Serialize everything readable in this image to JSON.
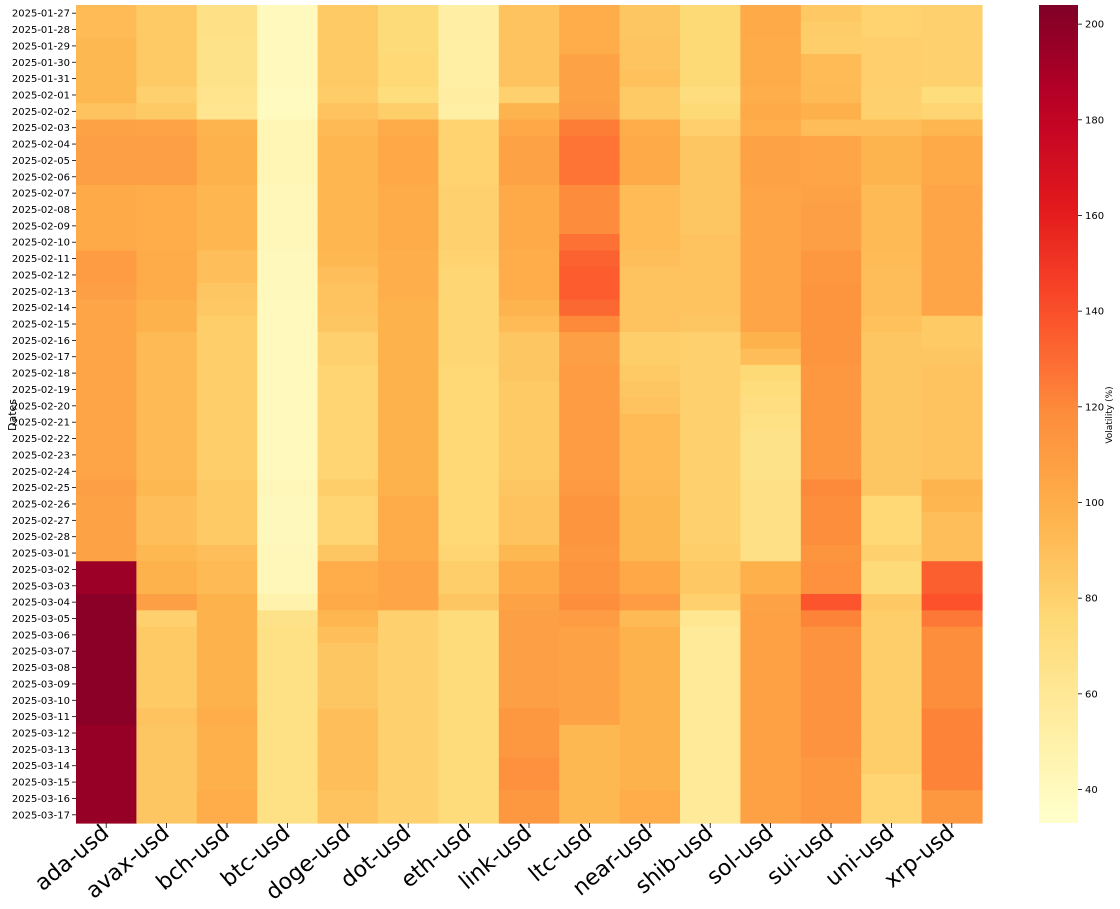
{
  "chart_data": {
    "type": "heatmap",
    "title": "",
    "ylabel": "Dates",
    "xlabel": "",
    "colorbar_label": "Volatility (%)",
    "colorbar_range": [
      33,
      204
    ],
    "colorbar_ticks": [
      40,
      60,
      80,
      100,
      120,
      140,
      160,
      180,
      200
    ],
    "colormap": "YlOrRd",
    "columns": [
      "ada-usd",
      "avax-usd",
      "bch-usd",
      "btc-usd",
      "doge-usd",
      "dot-usd",
      "eth-usd",
      "link-usd",
      "ltc-usd",
      "near-usd",
      "shib-usd",
      "sol-usd",
      "sui-usd",
      "uni-usd",
      "xrp-usd"
    ],
    "rows": [
      "2025-01-27",
      "2025-01-28",
      "2025-01-29",
      "2025-01-30",
      "2025-01-31",
      "2025-02-01",
      "2025-02-02",
      "2025-02-03",
      "2025-02-04",
      "2025-02-05",
      "2025-02-06",
      "2025-02-07",
      "2025-02-08",
      "2025-02-09",
      "2025-02-10",
      "2025-02-11",
      "2025-02-12",
      "2025-02-13",
      "2025-02-14",
      "2025-02-15",
      "2025-02-16",
      "2025-02-17",
      "2025-02-18",
      "2025-02-19",
      "2025-02-20",
      "2025-02-21",
      "2025-02-22",
      "2025-02-23",
      "2025-02-24",
      "2025-02-25",
      "2025-02-26",
      "2025-02-27",
      "2025-02-28",
      "2025-03-01",
      "2025-03-02",
      "2025-03-03",
      "2025-03-04",
      "2025-03-05",
      "2025-03-06",
      "2025-03-07",
      "2025-03-08",
      "2025-03-09",
      "2025-03-10",
      "2025-03-11",
      "2025-03-12",
      "2025-03-13",
      "2025-03-14",
      "2025-03-15",
      "2025-03-16",
      "2025-03-17"
    ],
    "values": [
      [
        92,
        84,
        67,
        40,
        84,
        74,
        53,
        88,
        100,
        86,
        75,
        102,
        85,
        79,
        80
      ],
      [
        92,
        84,
        67,
        40,
        84,
        74,
        53,
        88,
        100,
        86,
        75,
        102,
        83,
        79,
        80
      ],
      [
        94,
        84,
        66,
        40,
        84,
        74,
        52,
        88,
        100,
        87,
        75,
        101,
        82,
        81,
        80
      ],
      [
        94,
        84,
        66,
        40,
        84,
        76,
        52,
        88,
        106,
        87,
        75,
        101,
        92,
        81,
        80
      ],
      [
        94,
        84,
        66,
        40,
        84,
        76,
        52,
        88,
        106,
        89,
        75,
        101,
        92,
        81,
        80
      ],
      [
        94,
        80,
        64,
        39,
        83,
        72,
        54,
        80,
        106,
        84,
        71,
        99,
        93,
        80,
        72
      ],
      [
        88,
        84,
        63,
        39,
        88,
        82,
        52,
        96,
        108,
        84,
        75,
        102,
        98,
        80,
        78
      ],
      [
        106,
        105,
        96,
        44,
        93,
        101,
        79,
        103,
        124,
        100,
        81,
        100,
        91,
        91,
        95
      ],
      [
        108,
        108,
        97,
        44,
        95,
        103,
        79,
        106,
        127,
        102,
        86,
        106,
        104,
        96,
        102
      ],
      [
        108,
        108,
        97,
        44,
        95,
        103,
        79,
        106,
        127,
        102,
        86,
        106,
        104,
        96,
        102
      ],
      [
        108,
        108,
        97,
        44,
        95,
        103,
        79,
        106,
        127,
        102,
        86,
        106,
        104,
        96,
        102
      ],
      [
        102,
        100,
        95,
        42,
        95,
        101,
        80,
        102,
        119,
        92,
        86,
        104,
        106,
        93,
        104
      ],
      [
        102,
        100,
        95,
        42,
        95,
        101,
        80,
        102,
        119,
        92,
        86,
        104,
        108,
        93,
        104
      ],
      [
        102,
        100,
        95,
        42,
        95,
        101,
        80,
        102,
        119,
        92,
        86,
        104,
        108,
        93,
        104
      ],
      [
        102,
        100,
        95,
        42,
        95,
        101,
        80,
        102,
        128,
        92,
        88,
        104,
        108,
        93,
        104
      ],
      [
        110,
        101,
        90,
        41,
        94,
        99,
        79,
        100,
        133,
        90,
        88,
        104,
        112,
        92,
        104
      ],
      [
        110,
        101,
        90,
        41,
        90,
        99,
        77,
        100,
        135,
        88,
        88,
        104,
        112,
        91,
        104
      ],
      [
        108,
        101,
        86,
        41,
        88,
        99,
        77,
        100,
        135,
        88,
        88,
        104,
        114,
        91,
        104
      ],
      [
        104,
        97,
        85,
        40,
        88,
        97,
        77,
        96,
        131,
        88,
        88,
        104,
        114,
        91,
        104
      ],
      [
        104,
        97,
        82,
        40,
        86,
        97,
        77,
        92,
        120,
        88,
        86,
        104,
        114,
        89,
        84
      ],
      [
        104,
        93,
        82,
        40,
        80,
        97,
        77,
        86,
        108,
        82,
        80,
        97,
        114,
        86,
        84
      ],
      [
        104,
        93,
        82,
        40,
        80,
        97,
        77,
        86,
        108,
        82,
        80,
        91,
        114,
        86,
        86
      ],
      [
        104,
        93,
        82,
        40,
        78,
        97,
        76,
        86,
        110,
        84,
        80,
        75,
        112,
        86,
        88
      ],
      [
        104,
        93,
        82,
        40,
        78,
        97,
        76,
        84,
        110,
        86,
        80,
        72,
        112,
        86,
        88
      ],
      [
        104,
        93,
        82,
        40,
        78,
        97,
        76,
        84,
        110,
        88,
        80,
        70,
        112,
        86,
        88
      ],
      [
        104,
        93,
        82,
        40,
        78,
        97,
        76,
        84,
        110,
        92,
        80,
        68,
        112,
        86,
        88
      ],
      [
        104,
        93,
        82,
        40,
        78,
        97,
        76,
        84,
        110,
        92,
        80,
        66,
        112,
        86,
        88
      ],
      [
        104,
        93,
        82,
        40,
        78,
        97,
        76,
        84,
        110,
        92,
        80,
        66,
        112,
        86,
        88
      ],
      [
        104,
        93,
        82,
        40,
        78,
        97,
        76,
        84,
        110,
        92,
        80,
        66,
        112,
        86,
        88
      ],
      [
        108,
        94,
        84,
        42,
        82,
        97,
        76,
        86,
        111,
        93,
        80,
        67,
        120,
        86,
        96
      ],
      [
        106,
        90,
        84,
        41,
        78,
        101,
        76,
        88,
        114,
        94,
        80,
        67,
        118,
        76,
        95
      ],
      [
        106,
        90,
        84,
        41,
        78,
        101,
        76,
        88,
        114,
        94,
        80,
        67,
        118,
        76,
        90
      ],
      [
        106,
        90,
        84,
        41,
        78,
        101,
        76,
        88,
        114,
        94,
        80,
        67,
        118,
        76,
        90
      ],
      [
        106,
        94,
        90,
        42,
        86,
        101,
        78,
        94,
        112,
        94,
        82,
        67,
        114,
        80,
        90
      ],
      [
        194,
        97,
        93,
        42,
        100,
        104,
        82,
        102,
        114,
        103,
        85,
        98,
        116,
        74,
        134
      ],
      [
        194,
        97,
        93,
        42,
        100,
        104,
        82,
        102,
        114,
        103,
        85,
        98,
        116,
        74,
        134
      ],
      [
        200,
        108,
        97,
        48,
        102,
        104,
        86,
        106,
        118,
        110,
        80,
        106,
        138,
        85,
        139
      ],
      [
        200,
        80,
        97,
        66,
        95,
        80,
        73,
        108,
        110,
        93,
        62,
        107,
        122,
        82,
        126
      ],
      [
        200,
        84,
        97,
        68,
        90,
        80,
        73,
        108,
        106,
        97,
        58,
        107,
        115,
        82,
        118
      ],
      [
        200,
        84,
        97,
        68,
        86,
        80,
        73,
        108,
        106,
        97,
        58,
        107,
        115,
        82,
        118
      ],
      [
        200,
        84,
        97,
        68,
        86,
        80,
        73,
        108,
        106,
        97,
        58,
        107,
        115,
        82,
        118
      ],
      [
        200,
        84,
        97,
        68,
        86,
        80,
        73,
        108,
        106,
        97,
        58,
        107,
        115,
        82,
        118
      ],
      [
        200,
        84,
        97,
        68,
        86,
        80,
        73,
        108,
        106,
        97,
        58,
        107,
        115,
        82,
        118
      ],
      [
        200,
        88,
        100,
        68,
        90,
        80,
        73,
        112,
        106,
        97,
        58,
        107,
        115,
        82,
        122
      ],
      [
        196,
        86,
        98,
        68,
        90,
        80,
        73,
        112,
        94,
        97,
        58,
        107,
        115,
        82,
        122
      ],
      [
        196,
        86,
        98,
        68,
        90,
        80,
        73,
        112,
        94,
        97,
        58,
        107,
        115,
        82,
        122
      ],
      [
        196,
        86,
        98,
        68,
        90,
        80,
        73,
        116,
        94,
        97,
        58,
        107,
        112,
        82,
        122
      ],
      [
        196,
        86,
        98,
        68,
        90,
        80,
        73,
        116,
        94,
        97,
        58,
        107,
        112,
        78,
        122
      ],
      [
        196,
        86,
        100,
        68,
        88,
        80,
        73,
        112,
        94,
        100,
        58,
        107,
        112,
        78,
        112
      ],
      [
        196,
        86,
        100,
        68,
        88,
        80,
        73,
        112,
        94,
        100,
        58,
        107,
        112,
        78,
        112
      ]
    ]
  }
}
